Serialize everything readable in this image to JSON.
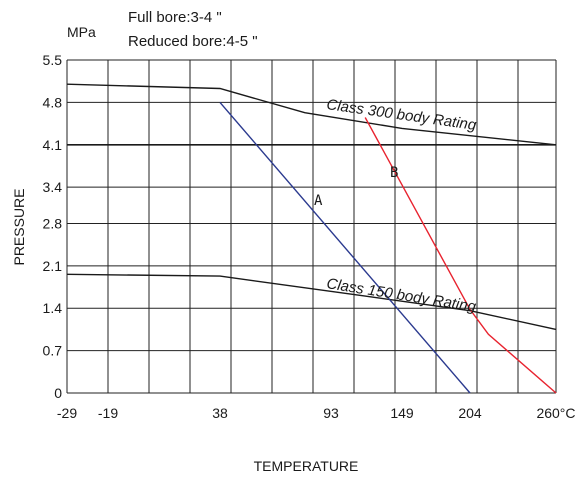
{
  "chart_data": {
    "type": "line",
    "notes": [
      "Full bore:3-4 \"",
      "Reduced bore:4-5 \""
    ],
    "ylabel": "PRESSURE",
    "xlabel": "TEMPERATURE",
    "y_unit": "MPa",
    "y_ticks": [
      "5.5",
      "4.8",
      "4.1",
      "3.4",
      "2.8",
      "2.1",
      "1.4",
      "0.7",
      "0"
    ],
    "y_tick_values": [
      5.5,
      4.8,
      4.1,
      3.4,
      2.8,
      2.1,
      1.4,
      0.7,
      0
    ],
    "x_ticks": [
      "-29",
      "-19",
      "38",
      "93",
      "149",
      "204",
      "260°C"
    ],
    "x_tick_values": [
      -29,
      -19,
      38,
      93,
      149,
      204,
      260
    ],
    "xlim": [
      -29,
      260
    ],
    "ylim": [
      0,
      5.5
    ],
    "grid": true,
    "series": [
      {
        "label": "Class 300 body Rating",
        "color": "#1a1a1a",
        "points": [
          [
            -29,
            5.1
          ],
          [
            38,
            5.03
          ],
          [
            80,
            4.63
          ],
          [
            149,
            4.37
          ],
          [
            260,
            4.1
          ]
        ]
      },
      {
        "label": "Class 150 body Rating",
        "color": "#1a1a1a",
        "points": [
          [
            -29,
            1.96
          ],
          [
            38,
            1.93
          ],
          [
            120,
            1.6
          ],
          [
            204,
            1.36
          ],
          [
            260,
            1.05
          ]
        ]
      },
      {
        "label": "A",
        "color": "#2b3a8f",
        "points": [
          [
            38,
            4.8
          ],
          [
            204,
            0
          ]
        ]
      },
      {
        "label": "B",
        "color": "#e8232f",
        "points": [
          [
            120,
            4.55
          ],
          [
            204,
            1.38
          ],
          [
            216,
            0.97
          ],
          [
            260,
            0
          ]
        ]
      }
    ],
    "reference_lines": [
      {
        "y": 4.1
      }
    ]
  }
}
